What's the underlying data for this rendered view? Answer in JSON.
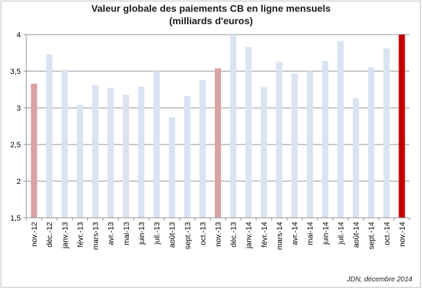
{
  "chart_data": {
    "type": "bar",
    "title": "Valeur globale des paiements CB en ligne mensuels",
    "subtitle": "(milliards d'euros)",
    "source": "JDN, décembre 2014",
    "categories": [
      "nov.-12",
      "déc.-12",
      "janv.-13",
      "févr.-13",
      "mars-13",
      "avr.-13",
      "mai-13",
      "juin-13",
      "juil.-13",
      "août-13",
      "sept.-13",
      "oct.-13",
      "nov.-13",
      "déc.-13",
      "janv.-14",
      "févr.-14",
      "mars-14",
      "avr.-14",
      "mai-14",
      "juin-14",
      "juil.-14",
      "août-14",
      "sept.-14",
      "oct.-14",
      "nov.-14"
    ],
    "values": [
      3.33,
      3.73,
      3.52,
      3.04,
      3.31,
      3.27,
      3.18,
      3.29,
      3.5,
      2.87,
      3.16,
      3.38,
      3.54,
      4.0,
      3.83,
      3.28,
      3.63,
      3.47,
      3.5,
      3.64,
      3.91,
      3.13,
      3.55,
      3.81,
      4.0
    ],
    "bar_colors": [
      "#d9a3a3",
      "#d9e3f2",
      "#d9e3f2",
      "#d9e3f2",
      "#d9e3f2",
      "#d9e3f2",
      "#d9e3f2",
      "#d9e3f2",
      "#d9e3f2",
      "#d9e3f2",
      "#d9e3f2",
      "#d9e3f2",
      "#d9a3a3",
      "#d9e3f2",
      "#d9e3f2",
      "#d9e3f2",
      "#d9e3f2",
      "#d9e3f2",
      "#d9e3f2",
      "#d9e3f2",
      "#d9e3f2",
      "#d9e3f2",
      "#d9e3f2",
      "#d9e3f2",
      "#c00000"
    ],
    "ylim": [
      1.5,
      4
    ],
    "yticks": [
      1.5,
      2,
      2.5,
      3,
      3.5,
      4
    ],
    "ytick_labels": [
      "1,5",
      "2",
      "2,5",
      "3",
      "3,5",
      "4"
    ],
    "grid": true,
    "gridline_color": "#8c8c8c",
    "xlabel": "",
    "ylabel": ""
  }
}
